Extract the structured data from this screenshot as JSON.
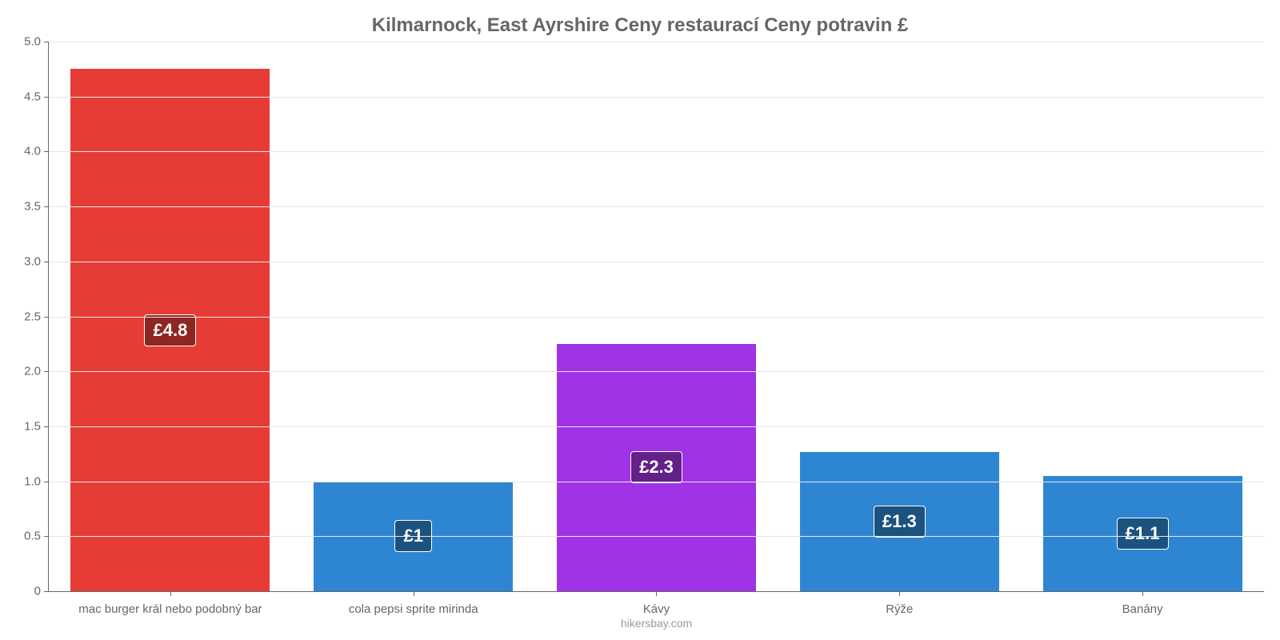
{
  "chart": {
    "type": "bar",
    "title": "Kilmarnock, East Ayrshire Ceny restaurací Ceny potravin £",
    "title_color": "#666666",
    "title_fontsize": 24,
    "background_color": "#ffffff",
    "grid_color": "#e6e6e6",
    "axis_color": "#666666",
    "tick_label_color": "#666666",
    "tick_label_fontsize": 15,
    "x_label_fontsize": 15,
    "value_label_fontsize": 22,
    "value_label_text_color": "#ffffff",
    "ylim": [
      0,
      5.0
    ],
    "ytick_step": 0.5,
    "yticks": [
      {
        "v": 0.0,
        "label": "0"
      },
      {
        "v": 0.5,
        "label": "0.5"
      },
      {
        "v": 1.0,
        "label": "1.0"
      },
      {
        "v": 1.5,
        "label": "1.5"
      },
      {
        "v": 2.0,
        "label": "2.0"
      },
      {
        "v": 2.5,
        "label": "2.5"
      },
      {
        "v": 3.0,
        "label": "3.0"
      },
      {
        "v": 3.5,
        "label": "3.5"
      },
      {
        "v": 4.0,
        "label": "4.0"
      },
      {
        "v": 4.5,
        "label": "4.5"
      },
      {
        "v": 5.0,
        "label": "5.0"
      }
    ],
    "bar_width_pct": 82,
    "categories": [
      "mac burger král nebo podobný bar",
      "cola pepsi sprite mirinda",
      "Kávy",
      "Rýže",
      "Banány"
    ],
    "values": [
      4.75,
      1.0,
      2.25,
      1.27,
      1.05
    ],
    "value_labels": [
      "£4.8",
      "£1",
      "£2.3",
      "£1.3",
      "£1.1"
    ],
    "bar_colors": [
      "#e73c36",
      "#2e86d2",
      "#a033e5",
      "#2e86d2",
      "#2e86d2"
    ],
    "badge_colors": [
      "#8e2621",
      "#1c527f",
      "#622088",
      "#1c527f",
      "#1c527f"
    ],
    "attribution": "hikersbay.com",
    "attribution_color": "#999999"
  }
}
